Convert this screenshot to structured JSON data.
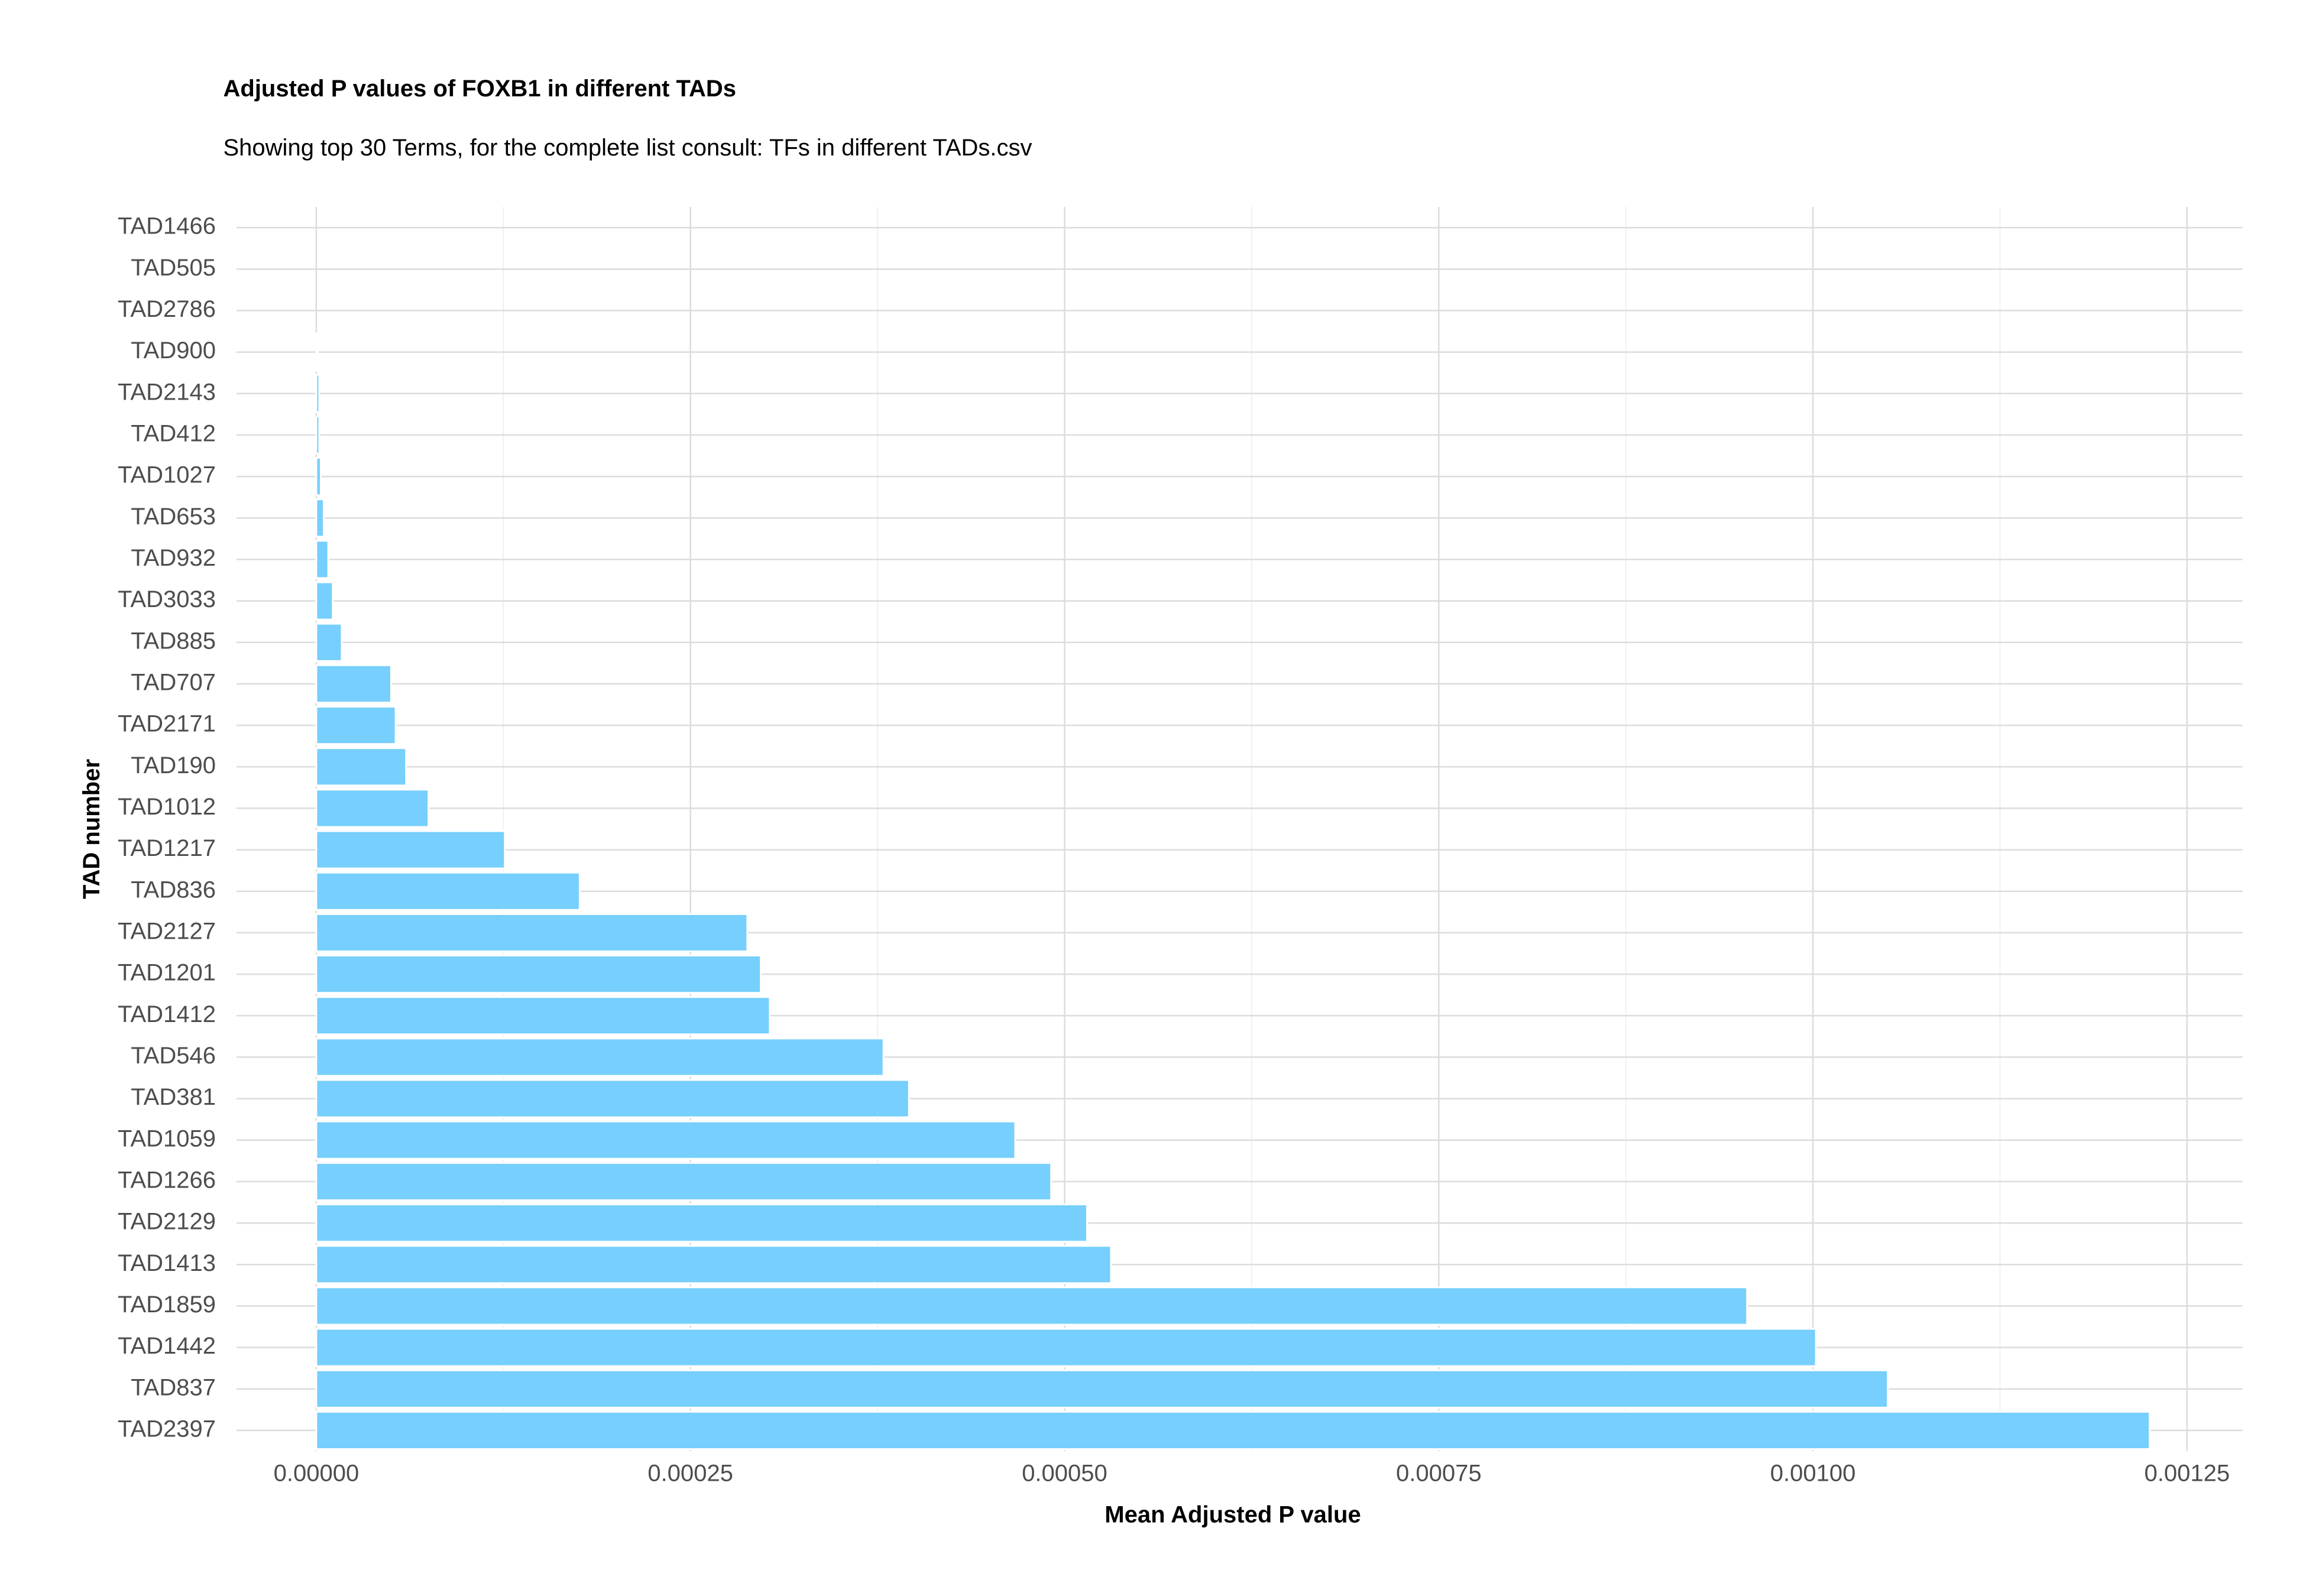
{
  "chart_data": {
    "type": "bar",
    "orientation": "horizontal",
    "title": "Adjusted P values of FOXB1 in different TADs",
    "subtitle": "Showing top 30 Terms, for the complete list consult: TFs in different TADs.csv",
    "x_label": "Mean Adjusted P value",
    "y_label": "TAD number",
    "categories": [
      "TAD1466",
      "TAD505",
      "TAD2786",
      "TAD900",
      "TAD2143",
      "TAD412",
      "TAD1027",
      "TAD653",
      "TAD932",
      "TAD3033",
      "TAD885",
      "TAD707",
      "TAD2171",
      "TAD190",
      "TAD1012",
      "TAD1217",
      "TAD836",
      "TAD2127",
      "TAD1201",
      "TAD1412",
      "TAD546",
      "TAD381",
      "TAD1059",
      "TAD1266",
      "TAD2129",
      "TAD1413",
      "TAD1859",
      "TAD1442",
      "TAD837",
      "TAD2397"
    ],
    "values": [
      0,
      0,
      0,
      1e-06,
      2e-06,
      2e-06,
      3e-06,
      5e-06,
      8e-06,
      1.1e-05,
      1.7e-05,
      5e-05,
      5.3e-05,
      6e-05,
      7.5e-05,
      0.000126,
      0.000176,
      0.000288,
      0.000297,
      0.000303,
      0.000379,
      0.000396,
      0.000467,
      0.000491,
      0.000515,
      0.000531,
      0.000956,
      0.001002,
      0.00105,
      0.001225
    ],
    "color": "#76cffc",
    "xlim": [
      -5.33e-05,
      0.001287
    ],
    "xticks": [
      {
        "value": 0,
        "label": "0.00000"
      },
      {
        "value": 0.00025,
        "label": "0.00025"
      },
      {
        "value": 0.0005,
        "label": "0.00050"
      },
      {
        "value": 0.00075,
        "label": "0.00075"
      },
      {
        "value": 0.001,
        "label": "0.00100"
      },
      {
        "value": 0.00125,
        "label": "0.00125"
      }
    ],
    "grid": true
  }
}
